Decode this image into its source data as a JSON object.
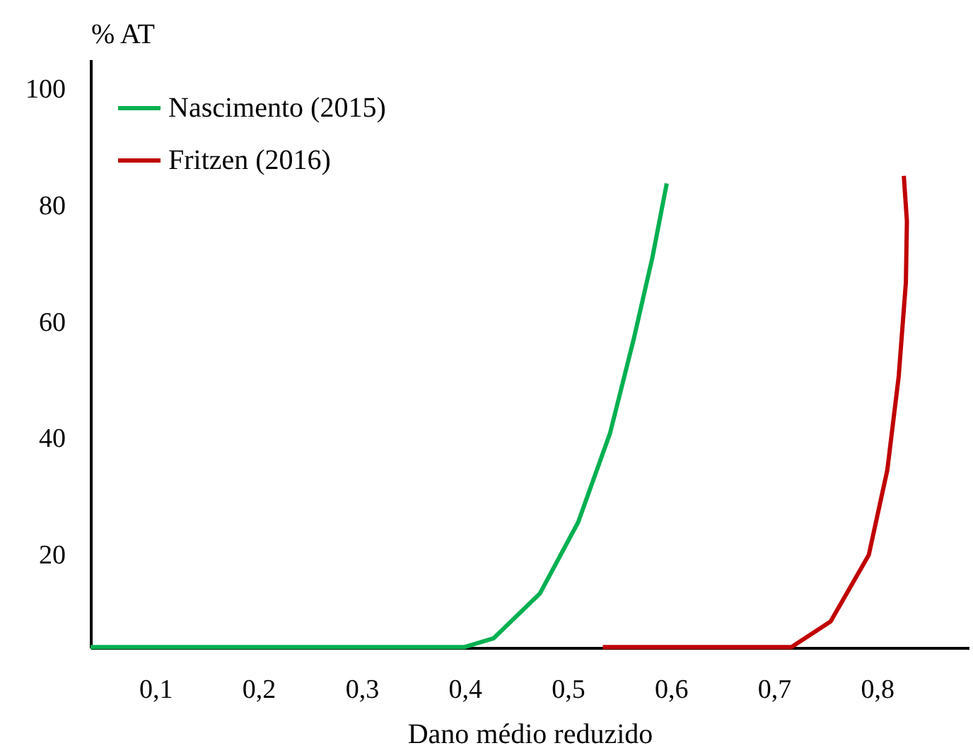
{
  "chart_data": {
    "type": "line",
    "xlabel": "Dano médio reduzido",
    "ylabel": "% AT",
    "xlim": [
      0.037,
      0.889
    ],
    "ylim": [
      4,
      105
    ],
    "xticks": [
      {
        "value": 0.1,
        "label": "0,1"
      },
      {
        "value": 0.2,
        "label": "0,2"
      },
      {
        "value": 0.3,
        "label": "0,3"
      },
      {
        "value": 0.4,
        "label": "0,4"
      },
      {
        "value": 0.5,
        "label": "0,5"
      },
      {
        "value": 0.6,
        "label": "0,6"
      },
      {
        "value": 0.7,
        "label": "0,7"
      },
      {
        "value": 0.8,
        "label": "0,8"
      }
    ],
    "yticks": [
      20,
      40,
      60,
      80,
      100
    ],
    "legend": "top left",
    "grid": false,
    "series": [
      {
        "name": "Nascimento (2015)",
        "color": "#00b050",
        "x": [
          0.037,
          0.4,
          0.428,
          0.473,
          0.51,
          0.541,
          0.564,
          0.582,
          0.596
        ],
        "values": [
          4.1,
          4.1,
          5.6,
          13.3,
          25.5,
          40.8,
          57,
          70.9,
          83.7
        ]
      },
      {
        "name": "Fritzen (2016)",
        "color": "#c00000",
        "x": [
          0.534,
          0.717,
          0.755,
          0.792,
          0.81,
          0.821,
          0.828,
          0.829,
          0.826
        ],
        "values": [
          4.1,
          4.1,
          8.5,
          19.9,
          34.5,
          50.5,
          66.7,
          77.2,
          85
        ]
      }
    ]
  }
}
